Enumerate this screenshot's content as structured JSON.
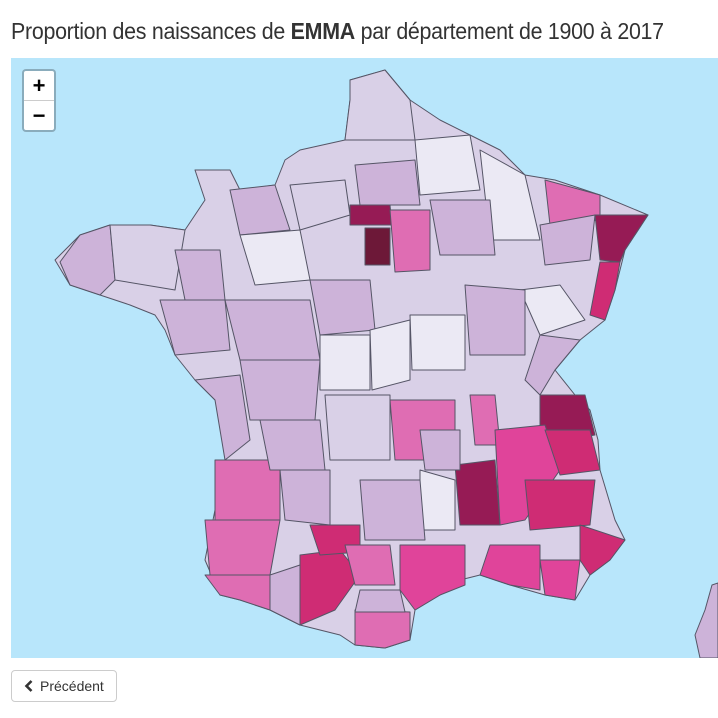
{
  "title": {
    "prefix": "Proportion des naissances de ",
    "name": "EMMA",
    "suffix": " par département de 1900 à 2017"
  },
  "map": {
    "zoom_in": "+",
    "zoom_out": "−",
    "colors": {
      "ocean": "#b8e6fb",
      "border": "#555566",
      "base": "#d9d0e7",
      "light": "#ebe9f4",
      "mid": "#cdb3d9",
      "pink": "#df6db3",
      "magenta": "#e0449a",
      "deep": "#cf2c74",
      "dark": "#961b55",
      "darkest": "#6d1838"
    }
  },
  "nav": {
    "previous_label": "Précédent",
    "previous_icon": "chevron-left-icon"
  }
}
